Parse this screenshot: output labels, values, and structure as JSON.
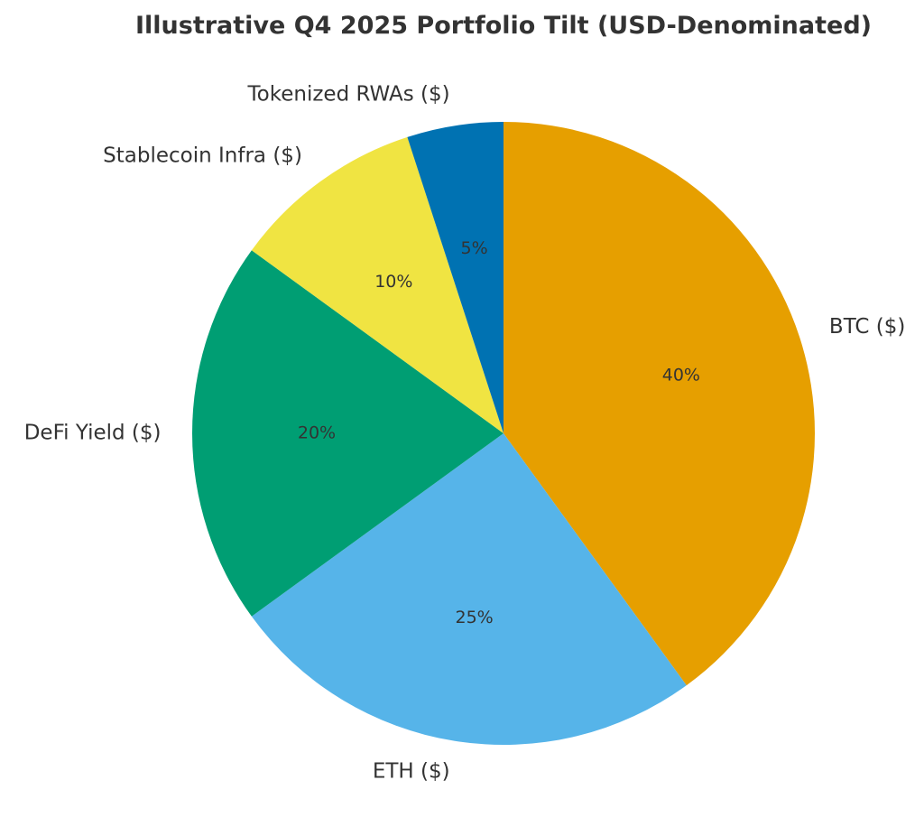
{
  "chart_data": {
    "type": "pie",
    "title": "Illustrative Q4 2025 Portfolio Tilt (USD-Denominated)",
    "start_angle": "top, clockwise",
    "slices": [
      {
        "label": "BTC ($)",
        "value": 40,
        "pct_label": "40%",
        "color": "#E69F00"
      },
      {
        "label": "ETH ($)",
        "value": 25,
        "pct_label": "25%",
        "color": "#56B4E9"
      },
      {
        "label": "DeFi Yield ($)",
        "value": 20,
        "pct_label": "20%",
        "color": "#009E73"
      },
      {
        "label": "Stablecoin Infra ($)",
        "value": 10,
        "pct_label": "10%",
        "color": "#F0E442"
      },
      {
        "label": "Tokenized RWAs ($)",
        "value": 5,
        "pct_label": "5%",
        "color": "#0072B2"
      }
    ]
  }
}
